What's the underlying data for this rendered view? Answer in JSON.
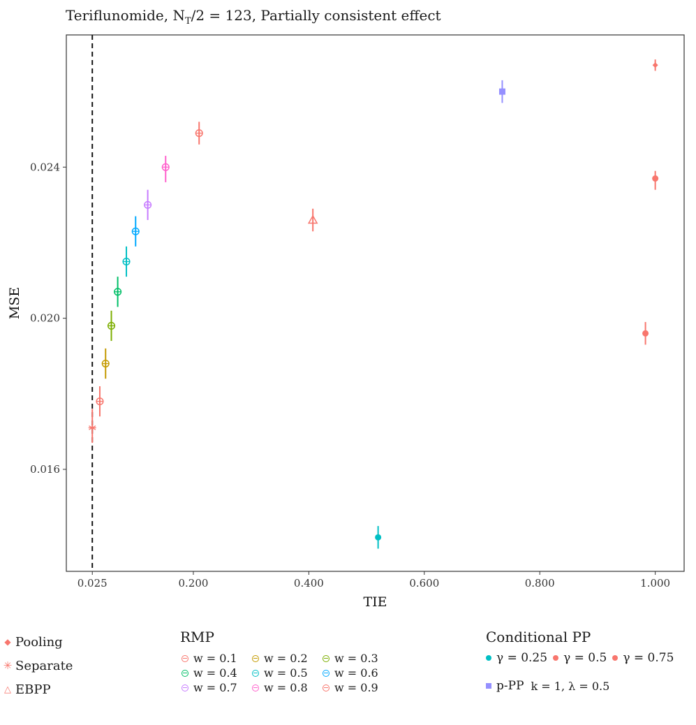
{
  "title": "Teriflunomide, Nₜ/2 = 123, Partially consistent effect",
  "title_parts": {
    "prefix": "Teriflunomide, N",
    "sub": "T",
    "suffix": "/2 = 123, Partially consistent effect"
  },
  "chart_data": {
    "type": "scatter",
    "xlabel": "TIE",
    "ylabel": "MSE",
    "xlim": [
      -0.02,
      1.05
    ],
    "ylim": [
      0.0133,
      0.0275
    ],
    "x_ticks": [
      0.025,
      0.2,
      0.4,
      0.6,
      0.8,
      1.0
    ],
    "x_tick_labels": [
      "0.025",
      "0.200",
      "0.400",
      "0.600",
      "0.800",
      "1.000"
    ],
    "y_ticks": [
      0.016,
      0.02,
      0.024
    ],
    "y_tick_labels": [
      "0.016",
      "0.020",
      "0.024"
    ],
    "reference_line": {
      "x": 0.025,
      "style": "dashed"
    },
    "grid": false,
    "series": [
      {
        "name": "Pooling",
        "shape": "diamond",
        "color": "#F8766D",
        "points": [
          {
            "x": 1.0,
            "y": 0.0267,
            "lo": 0.02655,
            "hi": 0.02685
          }
        ]
      },
      {
        "name": "Separate",
        "shape": "asterisk",
        "color": "#F8766D",
        "points": [
          {
            "x": 0.025,
            "y": 0.0171,
            "lo": 0.0167,
            "hi": 0.0176
          }
        ]
      },
      {
        "name": "EBPP",
        "shape": "triangle",
        "color": "#F8766D",
        "points": [
          {
            "x": 0.407,
            "y": 0.0226,
            "lo": 0.0223,
            "hi": 0.0229
          }
        ]
      },
      {
        "name": "w = 0.1",
        "shape": "circle-open",
        "color": "#F8766D",
        "points": [
          {
            "x": 0.038,
            "y": 0.0178,
            "lo": 0.0174,
            "hi": 0.0182
          }
        ]
      },
      {
        "name": "w = 0.2",
        "shape": "circle-open",
        "color": "#C49A00",
        "points": [
          {
            "x": 0.048,
            "y": 0.0188,
            "lo": 0.0184,
            "hi": 0.0192
          }
        ]
      },
      {
        "name": "w = 0.3",
        "shape": "circle-open",
        "color": "#7CAE00",
        "points": [
          {
            "x": 0.058,
            "y": 0.0198,
            "lo": 0.0194,
            "hi": 0.0202
          }
        ]
      },
      {
        "name": "w = 0.4",
        "shape": "circle-open",
        "color": "#00BE67",
        "points": [
          {
            "x": 0.069,
            "y": 0.0207,
            "lo": 0.0203,
            "hi": 0.0211
          }
        ]
      },
      {
        "name": "w = 0.5",
        "shape": "circle-open",
        "color": "#00BFC4",
        "points": [
          {
            "x": 0.084,
            "y": 0.0215,
            "lo": 0.0211,
            "hi": 0.0219
          }
        ]
      },
      {
        "name": "w = 0.6",
        "shape": "circle-open",
        "color": "#00A9FF",
        "points": [
          {
            "x": 0.1,
            "y": 0.0223,
            "lo": 0.0219,
            "hi": 0.0227
          }
        ]
      },
      {
        "name": "w = 0.7",
        "shape": "circle-open",
        "color": "#C77CFF",
        "points": [
          {
            "x": 0.121,
            "y": 0.023,
            "lo": 0.0226,
            "hi": 0.0234
          }
        ]
      },
      {
        "name": "w = 0.8",
        "shape": "circle-open",
        "color": "#FF61CC",
        "points": [
          {
            "x": 0.152,
            "y": 0.024,
            "lo": 0.0236,
            "hi": 0.0243
          }
        ]
      },
      {
        "name": "w = 0.9",
        "shape": "circle-open",
        "color": "#F8766D",
        "points": [
          {
            "x": 0.21,
            "y": 0.0249,
            "lo": 0.0246,
            "hi": 0.0252
          }
        ]
      },
      {
        "name": "γ = 0.25",
        "shape": "dot",
        "color": "#00BFC4",
        "points": [
          {
            "x": 0.52,
            "y": 0.0142,
            "lo": 0.0139,
            "hi": 0.0145
          }
        ]
      },
      {
        "name": "γ = 0.5",
        "shape": "dot",
        "color": "#F8766D",
        "points": [
          {
            "x": 1.0,
            "y": 0.0237,
            "lo": 0.0234,
            "hi": 0.0239
          }
        ]
      },
      {
        "name": "γ = 0.75",
        "shape": "dot",
        "color": "#F8766D",
        "points": [
          {
            "x": 0.983,
            "y": 0.0196,
            "lo": 0.0193,
            "hi": 0.0199
          }
        ]
      },
      {
        "name": "p-PP",
        "shape": "square",
        "color": "#9590FF",
        "points": [
          {
            "x": 0.735,
            "y": 0.026,
            "lo": 0.0257,
            "hi": 0.0263
          }
        ]
      }
    ]
  },
  "legend": {
    "general": [
      {
        "label": "Pooling",
        "symbol": "◆",
        "color": "#F8766D"
      },
      {
        "label": "Separate",
        "symbol": "✳",
        "color": "#F8766D"
      },
      {
        "label": "EBPP",
        "symbol": "△",
        "color": "#F8766D"
      }
    ],
    "rmp": {
      "title": "RMP",
      "items": [
        {
          "label": "w = 0.1",
          "color": "#F8766D"
        },
        {
          "label": "w = 0.2",
          "color": "#C49A00"
        },
        {
          "label": "w = 0.3",
          "color": "#7CAE00"
        },
        {
          "label": "w = 0.4",
          "color": "#00BE67"
        },
        {
          "label": "w = 0.5",
          "color": "#00BFC4"
        },
        {
          "label": "w = 0.6",
          "color": "#00A9FF"
        },
        {
          "label": "w = 0.7",
          "color": "#C77CFF"
        },
        {
          "label": "w = 0.8",
          "color": "#FF61CC"
        },
        {
          "label": "w = 0.9",
          "color": "#F8766D"
        }
      ]
    },
    "cpp": {
      "title": "Conditional PP",
      "items": [
        {
          "label": "γ = 0.25",
          "color": "#00BFC4"
        },
        {
          "label": "γ = 0.5",
          "color": "#F8766D"
        },
        {
          "label": "γ = 0.75",
          "color": "#F8766D"
        }
      ]
    },
    "ppp": {
      "label": "p-PP",
      "params": "k = 1, λ = 0.5",
      "color": "#9590FF"
    }
  }
}
